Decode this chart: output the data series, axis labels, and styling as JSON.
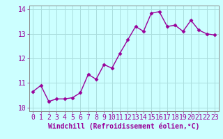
{
  "x": [
    0,
    1,
    2,
    3,
    4,
    5,
    6,
    7,
    8,
    9,
    10,
    11,
    12,
    13,
    14,
    15,
    16,
    17,
    18,
    19,
    20,
    21,
    22,
    23
  ],
  "y": [
    10.65,
    10.9,
    10.25,
    10.35,
    10.35,
    10.4,
    10.6,
    11.35,
    11.15,
    11.75,
    11.6,
    12.2,
    12.75,
    13.3,
    13.1,
    13.85,
    13.9,
    13.3,
    13.35,
    13.1,
    13.55,
    13.15,
    13.0,
    12.95
  ],
  "line_color": "#990099",
  "marker": "D",
  "marker_size": 2.5,
  "bg_color": "#ccffff",
  "grid_color": "#aadddd",
  "xlabel": "Windchill (Refroidissement éolien,°C)",
  "xlim": [
    -0.5,
    23.5
  ],
  "ylim": [
    9.85,
    14.15
  ],
  "yticks": [
    10,
    11,
    12,
    13,
    14
  ],
  "xticks": [
    0,
    1,
    2,
    3,
    4,
    5,
    6,
    7,
    8,
    9,
    10,
    11,
    12,
    13,
    14,
    15,
    16,
    17,
    18,
    19,
    20,
    21,
    22,
    23
  ],
  "xlabel_fontsize": 7,
  "tick_fontsize": 7,
  "line_width": 1.0,
  "spine_color": "#888888"
}
